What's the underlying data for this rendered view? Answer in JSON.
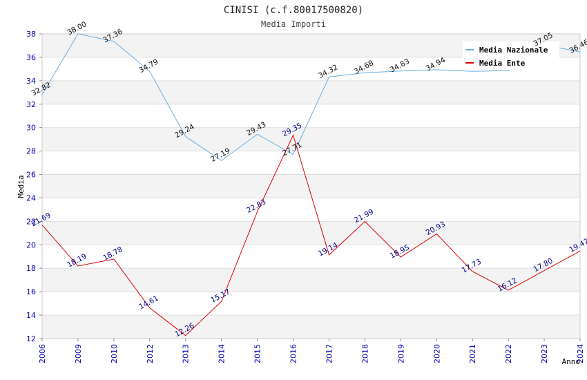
{
  "chart_data": {
    "type": "line",
    "title": "CINISI (c.f.80017500820)",
    "subtitle": "Media Importi",
    "xlabel": "Anno",
    "ylabel": "Media",
    "categories": [
      "2006",
      "2009",
      "2010",
      "2012",
      "2013",
      "2014",
      "2015",
      "2016",
      "2017",
      "2018",
      "2019",
      "2020",
      "2021",
      "2022",
      "2023",
      "2024"
    ],
    "ylim": [
      12,
      38
    ],
    "yticks": [
      12,
      14,
      16,
      18,
      20,
      22,
      24,
      26,
      28,
      30,
      32,
      34,
      36,
      38
    ],
    "grid": true,
    "legend_position": "top-right",
    "series": [
      {
        "name": "Media Nazionale",
        "color": "#6aaee0",
        "values": [
          32.82,
          38.0,
          37.36,
          34.79,
          29.24,
          27.19,
          29.43,
          27.71,
          34.32,
          34.68,
          34.83,
          34.94,
          34.8,
          34.87,
          37.05,
          36.46
        ],
        "labels": [
          "32.82",
          "38.00",
          "37.36",
          "34.79",
          "29.24",
          "27.19",
          "29.43",
          "27.71",
          "34.32",
          "34.68",
          "34.83",
          "34.94",
          "",
          "",
          "37.05",
          "36.46"
        ]
      },
      {
        "name": "Media Ente",
        "color": "#dd0000",
        "values": [
          21.69,
          18.19,
          18.78,
          14.61,
          12.26,
          15.17,
          22.83,
          29.35,
          19.14,
          21.99,
          18.95,
          20.93,
          17.73,
          16.12,
          17.8,
          19.47
        ],
        "labels": [
          "21.69",
          "18.19",
          "18.78",
          "14.61",
          "12.26",
          "15.17",
          "22.83",
          "29.35",
          "19.14",
          "21.99",
          "18.95",
          "20.93",
          "17.73",
          "16.12",
          "17.80",
          "19.47"
        ]
      }
    ]
  }
}
